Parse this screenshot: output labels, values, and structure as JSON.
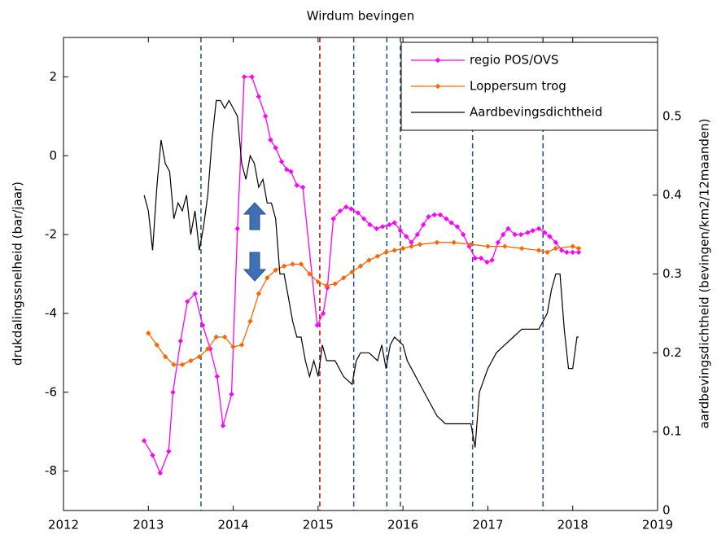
{
  "chart_data": {
    "type": "line",
    "title": "Wirdum bevingen",
    "ylabel": "drukdalingssnelheid (bar/jaar)",
    "y2label": "aardbevingsdichtheid (bevingen/km2/12maanden)",
    "xlim": [
      2012,
      2019
    ],
    "xticks": [
      2012,
      2013,
      2014,
      2015,
      2016,
      2017,
      2018,
      2019
    ],
    "ylim": [
      -9,
      3
    ],
    "yticks": [
      -8,
      -6,
      -4,
      -2,
      0,
      2
    ],
    "y2lim": [
      0,
      0.6
    ],
    "y2ticks": [
      0,
      0.1,
      0.2,
      0.3,
      0.4,
      0.5
    ],
    "grid": false,
    "legend": "upper right",
    "vlines": [
      {
        "x": 2013.62,
        "color": "#1f4e79"
      },
      {
        "x": 2015.02,
        "color": "#c00000"
      },
      {
        "x": 2015.42,
        "color": "#1f4e79"
      },
      {
        "x": 2015.81,
        "color": "#1f4e79"
      },
      {
        "x": 2015.97,
        "color": "#1f4e79"
      },
      {
        "x": 2016.82,
        "color": "#1f4e79"
      },
      {
        "x": 2017.65,
        "color": "#1f4e79"
      }
    ],
    "series": [
      {
        "name": "regio POS/OVS",
        "color": "#ff00ff",
        "marker": true,
        "x": [
          2012.95,
          2013.05,
          2013.14,
          2013.24,
          2013.29,
          2013.38,
          2013.46,
          2013.55,
          2013.64,
          2013.73,
          2013.81,
          2013.88,
          2013.98,
          2014.05,
          2014.13,
          2014.22,
          2014.3,
          2014.38,
          2014.44,
          2014.5,
          2014.57,
          2014.63,
          2014.68,
          2014.75,
          2014.82,
          2014.99,
          2015.06,
          2015.11,
          2015.18,
          2015.26,
          2015.33,
          2015.39,
          2015.47,
          2015.54,
          2015.61,
          2015.69,
          2015.76,
          2015.84,
          2015.9,
          2015.97,
          2016.04,
          2016.1,
          2016.17,
          2016.24,
          2016.3,
          2016.37,
          2016.44,
          2016.51,
          2016.57,
          2016.64,
          2016.71,
          2016.78,
          2016.85,
          2016.92,
          2016.99,
          2017.05,
          2017.12,
          2017.18,
          2017.24,
          2017.32,
          2017.39,
          2017.47,
          2017.53,
          2017.6,
          2017.67,
          2017.73,
          2017.8,
          2017.87,
          2017.93,
          2018.0,
          2018.07
        ],
        "values": [
          -7.23,
          -7.6,
          -8.05,
          -7.5,
          -6,
          -4.7,
          -3.7,
          -3.5,
          -4.3,
          -4.9,
          -5.6,
          -6.85,
          -6.05,
          -1.85,
          2,
          2,
          1.5,
          1,
          0.4,
          0.2,
          -0.15,
          -0.35,
          -0.4,
          -0.75,
          -0.8,
          -4.3,
          -4,
          -3.35,
          -1.6,
          -1.4,
          -1.3,
          -1.35,
          -1.45,
          -1.6,
          -1.75,
          -1.85,
          -1.8,
          -1.75,
          -1.7,
          -1.9,
          -2.05,
          -2.2,
          -2,
          -1.75,
          -1.55,
          -1.5,
          -1.5,
          -1.6,
          -1.7,
          -1.8,
          -2,
          -2.3,
          -2.6,
          -2.6,
          -2.7,
          -2.65,
          -2.2,
          -2,
          -1.85,
          -2,
          -2,
          -1.95,
          -1.9,
          -1.85,
          -1.95,
          -2.05,
          -2.2,
          -2.4,
          -2.45,
          -2.45,
          -2.45
        ]
      },
      {
        "name": "Loppersum trog",
        "color": "#ff6600",
        "marker": true,
        "x": [
          2013.0,
          2013.1,
          2013.2,
          2013.3,
          2013.4,
          2013.5,
          2013.6,
          2013.7,
          2013.8,
          2013.9,
          2014.0,
          2014.1,
          2014.2,
          2014.3,
          2014.4,
          2014.5,
          2014.6,
          2014.7,
          2014.8,
          2014.9,
          2015.0,
          2015.1,
          2015.2,
          2015.3,
          2015.4,
          2015.5,
          2015.6,
          2015.7,
          2015.8,
          2015.9,
          2016.0,
          2016.1,
          2016.2,
          2016.4,
          2016.6,
          2016.8,
          2017.0,
          2017.2,
          2017.4,
          2017.6,
          2017.7,
          2017.8,
          2018.0,
          2018.07
        ],
        "values": [
          -4.5,
          -4.8,
          -5.1,
          -5.3,
          -5.3,
          -5.2,
          -5.1,
          -4.9,
          -4.6,
          -4.6,
          -4.85,
          -4.8,
          -4.2,
          -3.5,
          -3.1,
          -2.9,
          -2.8,
          -2.75,
          -2.75,
          -3.0,
          -3.2,
          -3.3,
          -3.25,
          -3.1,
          -2.95,
          -2.8,
          -2.65,
          -2.55,
          -2.45,
          -2.4,
          -2.35,
          -2.3,
          -2.25,
          -2.2,
          -2.2,
          -2.25,
          -2.3,
          -2.3,
          -2.35,
          -2.4,
          -2.45,
          -2.35,
          -2.3,
          -2.35
        ]
      },
      {
        "name": "Aardbevingsdichtheid",
        "color": "#000000",
        "marker": false,
        "axis": "y2",
        "x": [
          2012.95,
          2013.0,
          2013.05,
          2013.1,
          2013.15,
          2013.2,
          2013.25,
          2013.3,
          2013.35,
          2013.4,
          2013.45,
          2013.5,
          2013.55,
          2013.6,
          2013.65,
          2013.7,
          2013.75,
          2013.8,
          2013.85,
          2013.9,
          2013.95,
          2014.0,
          2014.05,
          2014.1,
          2014.15,
          2014.2,
          2014.25,
          2014.3,
          2014.35,
          2014.4,
          2014.45,
          2014.5,
          2014.55,
          2014.6,
          2014.65,
          2014.7,
          2014.75,
          2014.8,
          2014.85,
          2014.9,
          2014.95,
          2015.0,
          2015.05,
          2015.1,
          2015.2,
          2015.3,
          2015.4,
          2015.45,
          2015.5,
          2015.6,
          2015.7,
          2015.75,
          2015.8,
          2015.85,
          2015.9,
          2016.0,
          2016.05,
          2016.1,
          2016.2,
          2016.3,
          2016.4,
          2016.5,
          2016.6,
          2016.7,
          2016.8,
          2016.85,
          2016.9,
          2017.0,
          2017.1,
          2017.2,
          2017.3,
          2017.4,
          2017.5,
          2017.6,
          2017.7,
          2017.75,
          2017.8,
          2017.85,
          2017.9,
          2017.95,
          2018.0,
          2018.05,
          2018.07
        ],
        "values": [
          0.4,
          0.38,
          0.33,
          0.41,
          0.47,
          0.44,
          0.43,
          0.37,
          0.39,
          0.38,
          0.4,
          0.35,
          0.38,
          0.33,
          0.36,
          0.4,
          0.47,
          0.52,
          0.52,
          0.51,
          0.52,
          0.51,
          0.5,
          0.44,
          0.42,
          0.45,
          0.44,
          0.41,
          0.42,
          0.39,
          0.39,
          0.37,
          0.3,
          0.3,
          0.27,
          0.24,
          0.22,
          0.22,
          0.19,
          0.17,
          0.19,
          0.17,
          0.21,
          0.19,
          0.19,
          0.17,
          0.16,
          0.19,
          0.2,
          0.2,
          0.19,
          0.21,
          0.18,
          0.21,
          0.22,
          0.21,
          0.19,
          0.18,
          0.16,
          0.14,
          0.12,
          0.11,
          0.11,
          0.11,
          0.11,
          0.08,
          0.15,
          0.18,
          0.2,
          0.21,
          0.22,
          0.23,
          0.23,
          0.23,
          0.25,
          0.28,
          0.3,
          0.3,
          0.23,
          0.18,
          0.18,
          0.22,
          0.22
        ]
      }
    ]
  }
}
